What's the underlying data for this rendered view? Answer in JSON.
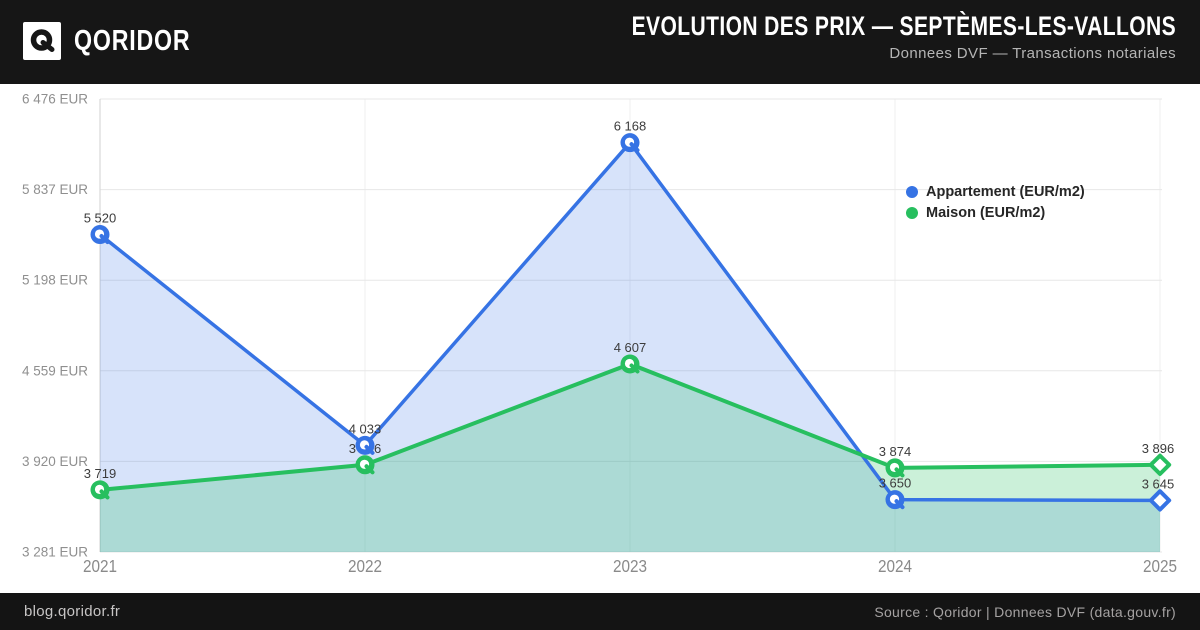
{
  "brand": {
    "logo_letter": "Q",
    "name": "QORIDOR"
  },
  "header": {
    "title": "EVOLUTION DES PRIX — SEPTÈMES-LES-VALLONS",
    "subtitle": "Donnees DVF — Transactions notariales"
  },
  "chart_data": {
    "type": "line",
    "x": [
      "2021",
      "2022",
      "2023",
      "2024",
      "2025"
    ],
    "series": [
      {
        "name": "Appartement (EUR/m2)",
        "color": "#3673e4",
        "values": [
          5520,
          4033,
          6168,
          3650,
          3645
        ],
        "labels": [
          "5 520",
          "4 033",
          "6 168",
          "3 650",
          "3 645"
        ]
      },
      {
        "name": "Maison (EUR/m2)",
        "color": "#27bf5f",
        "values": [
          3719,
          3896,
          4607,
          3874,
          3896
        ],
        "labels": [
          "3 719",
          "3 896",
          "4 607",
          "3 874",
          "3 896"
        ]
      }
    ],
    "y_ticks": [
      6476,
      5837,
      5198,
      4559,
      3920,
      3281
    ],
    "y_tick_labels": [
      "6 476 EUR",
      "5 837 EUR",
      "5 198 EUR",
      "4 559 EUR",
      "3 920 EUR",
      "3 281 EUR"
    ],
    "ylim": [
      3281,
      6476
    ],
    "grid": true,
    "area_fill": true,
    "legend_position": "top-right",
    "colors": {
      "grid": "#e7e7e7",
      "axis": "#d8d8d8",
      "tick_text": "#8f8f8f",
      "point_label": "#3c3c3c"
    }
  },
  "footer": {
    "left": "blog.qoridor.fr",
    "right": "Source : Qoridor | Donnees DVF (data.gouv.fr)"
  }
}
